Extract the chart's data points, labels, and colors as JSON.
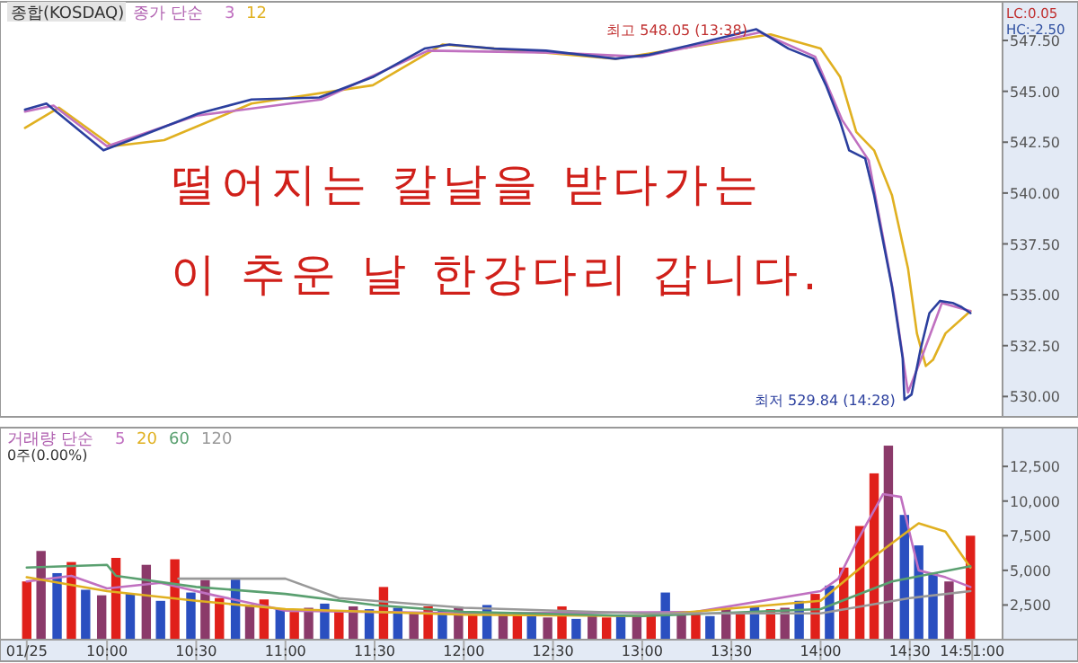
{
  "chart_data": [
    {
      "type": "line",
      "title": "종합(KOSDAQ)",
      "legend_title": "종가 단순",
      "legend": "top left",
      "tick_labels": "y",
      "xlim": [
        9.4,
        15.02
      ],
      "ylim": [
        529.0,
        549.4
      ],
      "yticks": [
        {
          "value": 530,
          "label": "530.00"
        },
        {
          "value": 532.5,
          "label": "532.50"
        },
        {
          "value": 535,
          "label": "535.00"
        },
        {
          "value": 537.5,
          "label": "537.50"
        },
        {
          "value": 540,
          "label": "540.00"
        },
        {
          "value": 542.5,
          "label": "542.50"
        },
        {
          "value": 545,
          "label": "545.00"
        },
        {
          "value": 547.5,
          "label": "547.50"
        }
      ],
      "series": [
        {
          "color": "#2b3f9e",
          "x": [
            9.54,
            9.66,
            9.98,
            10.13,
            10.51,
            10.81,
            11.19,
            11.49,
            11.78,
            11.92,
            12.17,
            12.46,
            12.85,
            13.04,
            13.43,
            13.64,
            13.82,
            13.96,
            14.03,
            14.11,
            14.16,
            14.25,
            14.3,
            14.4,
            14.46,
            14.47,
            14.51,
            14.56,
            14.61,
            14.67,
            14.74,
            14.79,
            14.84
          ],
          "values": [
            544.1,
            544.4,
            542.1,
            542.6,
            543.9,
            544.6,
            544.7,
            545.7,
            547.1,
            547.3,
            547.1,
            547.0,
            546.6,
            546.8,
            547.6,
            548.05,
            547.1,
            546.6,
            545.3,
            543.5,
            542.1,
            541.7,
            539.9,
            535.4,
            531.9,
            529.84,
            530.1,
            532.3,
            534.1,
            534.7,
            534.6,
            534.4,
            534.1
          ]
        },
        {
          "name": "3",
          "color": "#c070c0",
          "x": [
            9.54,
            9.7,
            10.0,
            10.5,
            11.2,
            11.8,
            12.5,
            13.0,
            13.45,
            13.66,
            13.97,
            14.12,
            14.27,
            14.41,
            14.49,
            14.57,
            14.68,
            14.84
          ],
          "values": [
            544.0,
            544.3,
            542.3,
            543.8,
            544.6,
            547.0,
            546.9,
            546.7,
            547.5,
            547.9,
            546.7,
            543.6,
            541.6,
            535.0,
            530.2,
            532.0,
            534.6,
            534.2
          ]
        },
        {
          "name": "12",
          "color": "#e0b020",
          "x": [
            9.54,
            9.73,
            10.03,
            10.32,
            10.81,
            11.49,
            11.88,
            12.17,
            12.46,
            12.85,
            13.43,
            13.72,
            14.0,
            14.11,
            14.2,
            14.3,
            14.4,
            14.49,
            14.54,
            14.59,
            14.63,
            14.7,
            14.84
          ],
          "values": [
            543.2,
            544.2,
            542.3,
            542.6,
            544.4,
            545.3,
            547.3,
            547.1,
            546.9,
            546.6,
            547.4,
            547.8,
            547.1,
            545.7,
            543.0,
            542.1,
            539.9,
            536.3,
            533.1,
            531.5,
            531.8,
            533.1,
            534.2
          ]
        }
      ],
      "annotations": [
        "떨어지는 칼날을 받다가는",
        "이 추운 날 한강다리 갑니다.",
        "LC:0.05",
        "HC:-2.50",
        {
          "text": "최고 548.05 (13:38)",
          "x": 13.64,
          "y": 548.05
        },
        {
          "text": "최저 529.84 (14:28)",
          "x": 14.47,
          "y": 529.84
        }
      ]
    },
    {
      "type": "bar",
      "legend_title": "거래량 단순",
      "legend": "top left",
      "xlim": [
        9.4,
        15.02
      ],
      "ylim": [
        0,
        15300
      ],
      "xticks": [
        {
          "value": 9.55,
          "label": "01/25"
        },
        {
          "value": 10,
          "label": "10:00"
        },
        {
          "value": 10.5,
          "label": "10:30"
        },
        {
          "value": 11,
          "label": "11:00"
        },
        {
          "value": 11.5,
          "label": "11:30"
        },
        {
          "value": 12,
          "label": "12:00"
        },
        {
          "value": 12.5,
          "label": "12:30"
        },
        {
          "value": 13,
          "label": "13:00"
        },
        {
          "value": 13.5,
          "label": "13:30"
        },
        {
          "value": 14,
          "label": "14:00"
        },
        {
          "value": 14.5,
          "label": "14:30"
        },
        {
          "value": 14.85,
          "label": "14:51:00"
        }
      ],
      "yticks": [
        {
          "value": 2500,
          "label": "2,500"
        },
        {
          "value": 5000,
          "label": "5,000"
        },
        {
          "value": 7500,
          "label": "7,500"
        },
        {
          "value": 10000,
          "label": "10,000"
        },
        {
          "value": 12500,
          "label": "12,500"
        }
      ],
      "x": [
        9.55,
        9.63,
        9.72,
        9.8,
        9.88,
        9.97,
        10.05,
        10.13,
        10.22,
        10.3,
        10.38,
        10.47,
        10.55,
        10.63,
        10.72,
        10.8,
        10.88,
        10.97,
        11.05,
        11.13,
        11.22,
        11.3,
        11.38,
        11.47,
        11.55,
        11.63,
        11.72,
        11.8,
        11.88,
        11.97,
        12.05,
        12.13,
        12.22,
        12.3,
        12.38,
        12.47,
        12.55,
        12.63,
        12.72,
        12.8,
        12.88,
        12.97,
        13.05,
        13.13,
        13.22,
        13.3,
        13.38,
        13.47,
        13.55,
        13.63,
        13.72,
        13.8,
        13.88,
        13.97,
        14.05,
        14.13,
        14.22,
        14.3,
        14.38,
        14.47,
        14.55,
        14.63,
        14.72,
        14.84
      ],
      "values": [
        4200,
        6400,
        4800,
        5600,
        3600,
        3200,
        5900,
        3300,
        5400,
        2800,
        5800,
        3400,
        4300,
        3000,
        4400,
        2500,
        2900,
        2200,
        2000,
        2300,
        2600,
        2100,
        2400,
        2200,
        3800,
        2300,
        2000,
        2400,
        2100,
        2300,
        1800,
        2500,
        1900,
        2000,
        1700,
        1600,
        2400,
        1500,
        1700,
        1600,
        1800,
        1700,
        1900,
        3400,
        1800,
        1900,
        1700,
        2200,
        2000,
        2400,
        2200,
        2300,
        2800,
        3300,
        3900,
        5200,
        8200,
        12000,
        14000,
        9000,
        6800,
        4800,
        4200,
        7500
      ],
      "colors": [
        "#e0201a",
        "#8b3a6a",
        "#2a4fc0",
        "#e0201a",
        "#2a4fc0",
        "#8b3a6a",
        "#e0201a",
        "#2a4fc0",
        "#8b3a6a",
        "#2a4fc0",
        "#e0201a",
        "#2a4fc0",
        "#8b3a6a",
        "#e0201a",
        "#2a4fc0",
        "#8b3a6a",
        "#e0201a",
        "#2a4fc0",
        "#e0201a",
        "#8b3a6a",
        "#2a4fc0",
        "#e0201a",
        "#8b3a6a",
        "#2a4fc0",
        "#e0201a",
        "#2a4fc0",
        "#8b3a6a",
        "#e0201a",
        "#2a4fc0",
        "#8b3a6a",
        "#e0201a",
        "#2a4fc0",
        "#8b3a6a",
        "#e0201a",
        "#2a4fc0",
        "#8b3a6a",
        "#e0201a",
        "#2a4fc0",
        "#8b3a6a",
        "#e0201a",
        "#2a4fc0",
        "#8b3a6a",
        "#e0201a",
        "#2a4fc0",
        "#8b3a6a",
        "#e0201a",
        "#2a4fc0",
        "#8b3a6a",
        "#e0201a",
        "#2a4fc0",
        "#e0201a",
        "#8b3a6a",
        "#2a4fc0",
        "#e0201a",
        "#2a4fc0",
        "#e0201a",
        "#e0201a",
        "#e0201a",
        "#8b3a6a",
        "#2a4fc0",
        "#2a4fc0",
        "#2a4fc0",
        "#8b3a6a",
        "#e0201a"
      ],
      "series": [
        {
          "type": "line",
          "name": "5",
          "color": "#c070c0",
          "x": [
            9.55,
            9.8,
            10.0,
            10.3,
            10.6,
            11.0,
            12.0,
            13.3,
            14.0,
            14.1,
            14.2,
            14.35,
            14.45,
            14.55,
            14.7,
            14.84
          ],
          "values": [
            4200,
            4600,
            3700,
            4100,
            3200,
            2100,
            1900,
            2000,
            3500,
            4400,
            7000,
            10500,
            10300,
            5000,
            4500,
            3800
          ]
        },
        {
          "type": "line",
          "name": "20",
          "color": "#e0b020",
          "x": [
            9.55,
            10.0,
            10.5,
            11.0,
            12.0,
            13.0,
            14.0,
            14.3,
            14.55,
            14.7,
            14.84
          ],
          "values": [
            4500,
            3500,
            2800,
            2200,
            1800,
            1700,
            2800,
            6000,
            8400,
            7800,
            5200
          ]
        },
        {
          "type": "line",
          "name": "60",
          "color": "#5aa070",
          "x": [
            9.55,
            10.0,
            10.05,
            10.5,
            11.0,
            11.5,
            12.0,
            13.0,
            14.0,
            14.4,
            14.84
          ],
          "values": [
            5200,
            5400,
            4600,
            3800,
            3300,
            2500,
            2000,
            1700,
            2200,
            4200,
            5300
          ]
        },
        {
          "type": "line",
          "name": "120",
          "color": "#999999",
          "x": [
            10.4,
            11.0,
            11.3,
            12.0,
            13.0,
            14.0,
            14.5,
            14.84
          ],
          "values": [
            4400,
            4400,
            3000,
            2300,
            1900,
            1900,
            3000,
            3500
          ]
        }
      ],
      "annotations": [
        "0주(0.00%)"
      ]
    }
  ]
}
